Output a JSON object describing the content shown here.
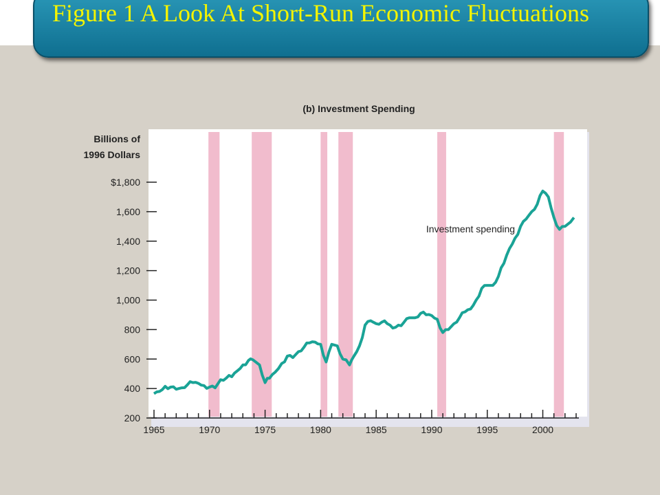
{
  "slide": {
    "title": "Figure 1 A Look At Short-Run Economic Fluctuations"
  },
  "colors": {
    "banner": "#1f86a6",
    "title_text": "#f4f400",
    "line": "#1aa396",
    "recession": "#f1bccd",
    "background": "#d6d1c8"
  },
  "chart_data": {
    "type": "line",
    "title": "(b) Investment Spending",
    "ylabel": "Billions of 1996 Dollars",
    "ylabel_lines": [
      "Billions of",
      "1996 Dollars"
    ],
    "xlabel": "",
    "ylim": [
      200,
      1800
    ],
    "xlim": [
      1965,
      2003
    ],
    "yticks": [
      200,
      400,
      600,
      800,
      1000,
      1200,
      1400,
      1600,
      1800
    ],
    "ytick_labels": [
      "200",
      "400",
      "600",
      "800",
      "1,000",
      "1,200",
      "1,400",
      "1,600",
      "$1,800"
    ],
    "xticks": [
      1965,
      1970,
      1975,
      1980,
      1985,
      1990,
      1995,
      2000
    ],
    "xtick_labels": [
      "1965",
      "1970",
      "1975",
      "1980",
      "1985",
      "1990",
      "1995",
      "2000"
    ],
    "grid": false,
    "annotations": [
      {
        "text": "Investment spending",
        "x": 1993.5,
        "y": 1460
      }
    ],
    "recessions": [
      [
        1969.9,
        1970.9
      ],
      [
        1973.8,
        1975.6
      ],
      [
        1980.0,
        1980.6
      ],
      [
        1981.6,
        1982.9
      ],
      [
        1990.5,
        1991.3
      ],
      [
        2001.0,
        2001.9
      ]
    ],
    "series": [
      {
        "name": "Investment spending",
        "x": [
          1965.0,
          1965.5,
          1966.0,
          1966.5,
          1967.0,
          1967.5,
          1968.0,
          1968.5,
          1969.0,
          1969.5,
          1970.0,
          1970.5,
          1971.0,
          1971.5,
          1972.0,
          1972.5,
          1973.0,
          1973.5,
          1973.9,
          1974.5,
          1975.0,
          1975.4,
          1975.9,
          1976.5,
          1977.0,
          1977.5,
          1978.0,
          1978.5,
          1979.0,
          1979.5,
          1980.0,
          1980.5,
          1981.0,
          1981.5,
          1982.0,
          1982.6,
          1983.0,
          1983.5,
          1984.0,
          1984.5,
          1985.0,
          1985.5,
          1986.0,
          1986.5,
          1987.0,
          1987.5,
          1988.0,
          1988.5,
          1989.0,
          1989.5,
          1990.0,
          1990.5,
          1991.0,
          1991.5,
          1992.0,
          1992.5,
          1993.0,
          1993.5,
          1994.0,
          1994.5,
          1995.0,
          1995.5,
          1996.0,
          1996.5,
          1997.0,
          1997.5,
          1998.0,
          1998.5,
          1999.0,
          1999.5,
          2000.0,
          2000.5,
          2001.0,
          2001.5,
          2002.0,
          2002.5,
          2002.8
        ],
        "values": [
          365,
          380,
          415,
          410,
          395,
          405,
          425,
          440,
          435,
          420,
          410,
          405,
          460,
          470,
          480,
          520,
          560,
          590,
          595,
          560,
          440,
          470,
          510,
          570,
          620,
          610,
          650,
          680,
          710,
          715,
          700,
          580,
          700,
          690,
          600,
          560,
          620,
          690,
          830,
          860,
          840,
          850,
          840,
          810,
          830,
          850,
          880,
          880,
          910,
          900,
          895,
          870,
          780,
          800,
          840,
          880,
          920,
          940,
          1000,
          1080,
          1100,
          1100,
          1160,
          1250,
          1350,
          1420,
          1500,
          1550,
          1600,
          1650,
          1740,
          1700,
          1560,
          1480,
          1500,
          1530,
          1560
        ]
      }
    ]
  }
}
